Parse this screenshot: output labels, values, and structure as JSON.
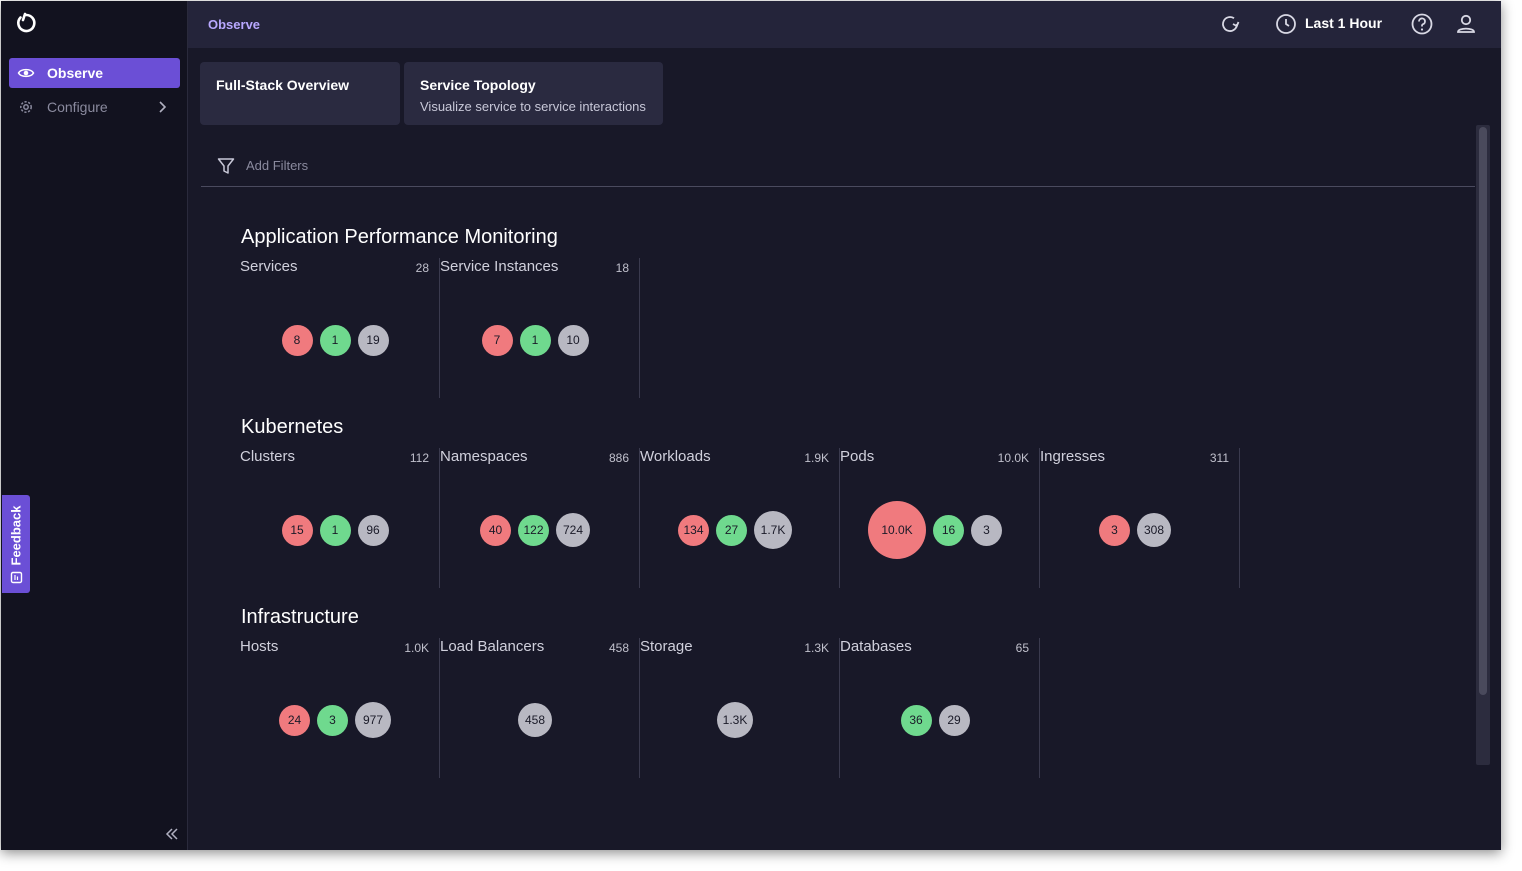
{
  "sidebar": {
    "items": [
      {
        "label": "Observe",
        "icon": "eye-icon",
        "active": true
      },
      {
        "label": "Configure",
        "icon": "gear-icon",
        "active": false
      }
    ],
    "feedback_label": "Feedback"
  },
  "header": {
    "title": "Observe",
    "time_range": "Last 1 Hour"
  },
  "tabs": [
    {
      "title": "Full-Stack Overview",
      "subtitle": ""
    },
    {
      "title": "Service Topology",
      "subtitle": "Visualize service to service interactions"
    }
  ],
  "filter": {
    "label": "Add Filters"
  },
  "colors": {
    "error": "#f07a7e",
    "healthy": "#6fd98e",
    "neutral": "#b8b8c2",
    "accent": "#6b4fd6"
  },
  "sections": [
    {
      "title": "Application Performance Monitoring",
      "cards": [
        {
          "name": "Services",
          "count": "28",
          "bubbles": [
            {
              "value": "8",
              "status": "red"
            },
            {
              "value": "1",
              "status": "green"
            },
            {
              "value": "19",
              "status": "gray"
            }
          ]
        },
        {
          "name": "Service Instances",
          "count": "18",
          "bubbles": [
            {
              "value": "7",
              "status": "red"
            },
            {
              "value": "1",
              "status": "green"
            },
            {
              "value": "10",
              "status": "gray"
            }
          ]
        }
      ]
    },
    {
      "title": "Kubernetes",
      "cards": [
        {
          "name": "Clusters",
          "count": "112",
          "bubbles": [
            {
              "value": "15",
              "status": "red"
            },
            {
              "value": "1",
              "status": "green"
            },
            {
              "value": "96",
              "status": "gray"
            }
          ]
        },
        {
          "name": "Namespaces",
          "count": "886",
          "bubbles": [
            {
              "value": "40",
              "status": "red"
            },
            {
              "value": "122",
              "status": "green"
            },
            {
              "value": "724",
              "status": "gray"
            }
          ]
        },
        {
          "name": "Workloads",
          "count": "1.9K",
          "bubbles": [
            {
              "value": "134",
              "status": "red"
            },
            {
              "value": "27",
              "status": "green"
            },
            {
              "value": "1.7K",
              "status": "gray"
            }
          ]
        },
        {
          "name": "Pods",
          "count": "10.0K",
          "bubbles": [
            {
              "value": "10.0K",
              "status": "red"
            },
            {
              "value": "16",
              "status": "green"
            },
            {
              "value": "3",
              "status": "gray"
            }
          ]
        },
        {
          "name": "Ingresses",
          "count": "311",
          "bubbles": [
            {
              "value": "3",
              "status": "red"
            },
            {
              "value": "308",
              "status": "gray"
            }
          ]
        }
      ]
    },
    {
      "title": "Infrastructure",
      "cards": [
        {
          "name": "Hosts",
          "count": "1.0K",
          "bubbles": [
            {
              "value": "24",
              "status": "red"
            },
            {
              "value": "3",
              "status": "green"
            },
            {
              "value": "977",
              "status": "gray"
            }
          ]
        },
        {
          "name": "Load Balancers",
          "count": "458",
          "bubbles": [
            {
              "value": "458",
              "status": "gray"
            }
          ]
        },
        {
          "name": "Storage",
          "count": "1.3K",
          "bubbles": [
            {
              "value": "1.3K",
              "status": "gray"
            }
          ]
        },
        {
          "name": "Databases",
          "count": "65",
          "bubbles": [
            {
              "value": "36",
              "status": "green"
            },
            {
              "value": "29",
              "status": "gray"
            }
          ]
        }
      ]
    }
  ]
}
